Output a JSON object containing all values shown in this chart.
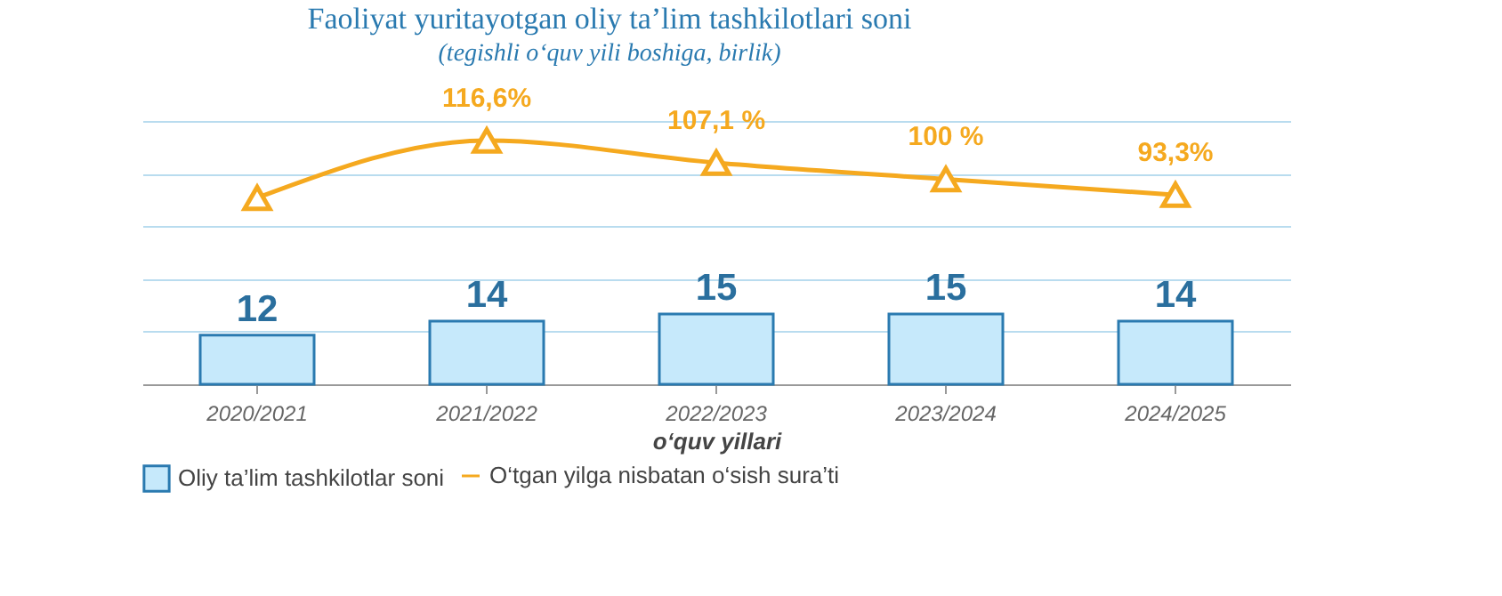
{
  "chart_data": {
    "type": "bar",
    "title": "Faoliyat yuritayotgan oliy ta’lim tashkilotlari soni",
    "subtitle": "(tegishli o‘quv yili boshiga, birlik)",
    "xlabel": "o‘quv yillari",
    "categories": [
      "2020/2021",
      "2021/2022",
      "2022/2023",
      "2023/2024",
      "2024/2025"
    ],
    "series": [
      {
        "name": "Oliy ta’lim tashkilotlar soni",
        "color": "#c6e9fb",
        "values": [
          12,
          14,
          15,
          15,
          14
        ],
        "data_labels": true
      },
      {
        "name": "O‘tgan yilga nisbatan o‘sish sura’ti",
        "type": "line",
        "axis": "y2",
        "color": "#f5a91f",
        "marker": "triangle",
        "values": [
          92,
          116.6,
          107.1,
          100,
          93.3
        ],
        "value_labels": [
          null,
          "116,6%",
          "107,1 %",
          "100 %",
          "93,3%"
        ]
      }
    ],
    "ylim": [
      5,
      42.5
    ],
    "yticks": [
      {
        "value": 5,
        "label": null
      },
      {
        "value": 12.5,
        "label": null
      },
      {
        "value": 20,
        "label": null
      },
      {
        "value": 27.5,
        "label": null
      },
      {
        "value": 35,
        "label": null
      },
      {
        "value": 42.5,
        "label": null
      }
    ],
    "y2lim": [
      12,
      125
    ],
    "grid": "y",
    "tick_labels": "x",
    "legend": "bottom"
  }
}
